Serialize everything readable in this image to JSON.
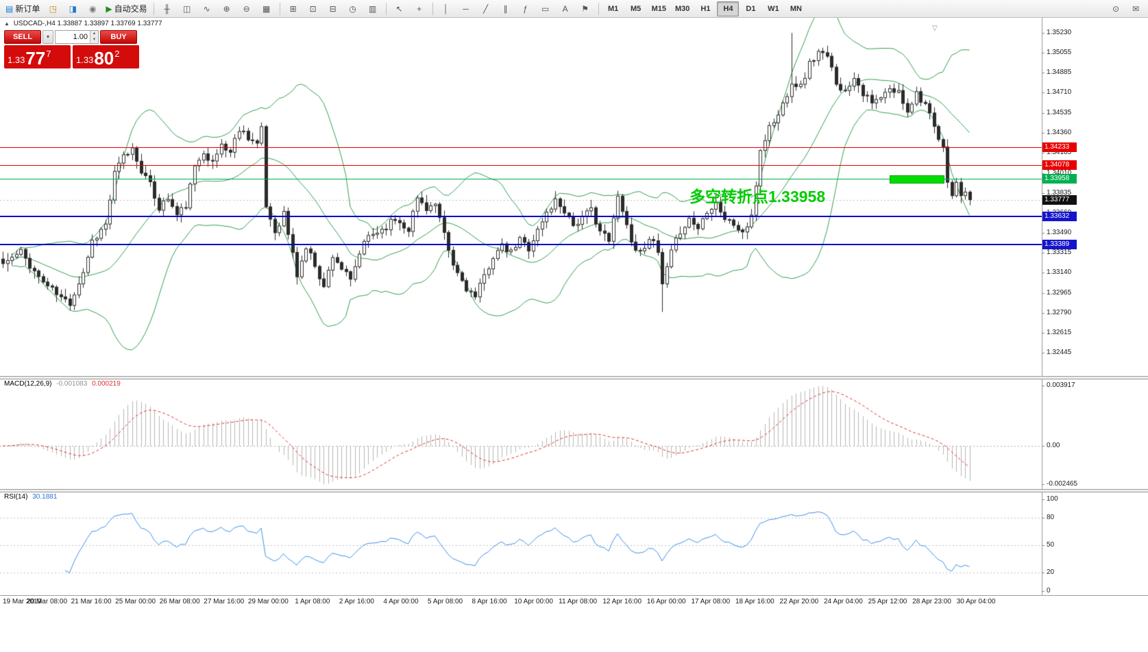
{
  "toolbar": {
    "groups": [
      [
        {
          "name": "new-order-button",
          "glyph": "▤",
          "glyph_color": "#1976d2",
          "label": "新订单"
        },
        {
          "name": "market-watch-button",
          "glyph": "◳",
          "glyph_color": "#c98a00"
        },
        {
          "name": "navigator-button",
          "glyph": "◨",
          "glyph_color": "#1976d2"
        },
        {
          "name": "terminal-button",
          "glyph": "◉",
          "glyph_color": "#777777"
        },
        {
          "name": "autotrading-button",
          "glyph": "▶",
          "glyph_color": "#1e8e1e",
          "label": "自动交易"
        }
      ],
      [
        {
          "name": "bar-chart-button",
          "glyph": "╫"
        },
        {
          "name": "candlestick-chart-button",
          "glyph": "◫"
        },
        {
          "name": "line-chart-button",
          "glyph": "∿"
        },
        {
          "name": "zoom-in-button",
          "glyph": "⊕"
        },
        {
          "name": "zoom-out-button",
          "glyph": "⊖"
        },
        {
          "name": "grid-button",
          "glyph": "▦"
        }
      ],
      [
        {
          "name": "tile-windows-button",
          "glyph": "⊞"
        },
        {
          "name": "new-chart-button",
          "glyph": "⊡"
        },
        {
          "name": "profiles-button",
          "glyph": "⊟"
        },
        {
          "name": "clock-button",
          "glyph": "◷"
        },
        {
          "name": "indicators-button",
          "glyph": "▥"
        }
      ],
      [
        {
          "name": "cursor-button",
          "glyph": "↖"
        },
        {
          "name": "crosshair-button",
          "glyph": "+"
        }
      ],
      [
        {
          "name": "vertical-line-button",
          "glyph": "│"
        },
        {
          "name": "horizontal-line-button",
          "glyph": "─"
        },
        {
          "name": "trendline-button",
          "glyph": "╱"
        },
        {
          "name": "equidistant-channel-button",
          "glyph": "∥"
        },
        {
          "name": "fibonacci-button",
          "glyph": "ƒ"
        },
        {
          "name": "shapes-button",
          "glyph": "▭"
        },
        {
          "name": "text-button",
          "glyph": "A"
        },
        {
          "name": "arrows-button",
          "glyph": "⚑"
        }
      ]
    ],
    "timeframes": {
      "items": [
        "M1",
        "M5",
        "M15",
        "M30",
        "H1",
        "H4",
        "D1",
        "W1",
        "MN"
      ],
      "active": "H4"
    },
    "right_buttons": [
      {
        "name": "search-button",
        "glyph": "⊙"
      },
      {
        "name": "chat-button",
        "glyph": "✉"
      }
    ]
  },
  "title": {
    "marker": "▲",
    "symbol_period": "USDCAD-,H4",
    "ohlc": "1.33887 1.33897 1.33769 1.33777"
  },
  "one_click": {
    "sell_label": "SELL",
    "buy_label": "BUY",
    "volume": "1.00",
    "sell_price_main": "1.33",
    "sell_price_big": "77",
    "sell_price_sup": "7",
    "buy_price_main": "1.33",
    "buy_price_big": "80",
    "buy_price_sup": "2",
    "icons": {
      "dropdown": "▼",
      "spin_up": "▲",
      "spin_down": "▼"
    }
  },
  "annotation": {
    "text": "多空转折点1.33958",
    "color": "#00cc00"
  },
  "levels": [
    {
      "name": "resistance-upper",
      "price": "1.34233",
      "color": "#e80000",
      "badge": "#e80000",
      "thickness": 1
    },
    {
      "name": "resistance-lower",
      "price": "1.34078",
      "color": "#e80000",
      "badge": "#e80000",
      "thickness": 1
    },
    {
      "name": "pivot",
      "price": "1.33958",
      "color": "#00b050",
      "badge": "#00b050",
      "thickness": 1
    },
    {
      "name": "support-upper",
      "price": "1.33632",
      "color": "#0000cd",
      "badge": "#1414cc",
      "thickness": 2
    },
    {
      "name": "support-lower",
      "price": "1.33389",
      "color": "#0000cd",
      "badge": "#1414cc",
      "thickness": 2
    }
  ],
  "current_price_badge": "1.33777",
  "icons": {
    "shift_marker": "▽"
  },
  "chart_data": {
    "type": "candlestick",
    "symbol": "USDCAD-",
    "period": "H4",
    "ohlc_display": {
      "open": "1.33887",
      "high": "1.33897",
      "low": "1.33769",
      "close": "1.33777"
    },
    "current_price": 1.33777,
    "bollinger": {
      "period": 20,
      "deviation": 2,
      "color": "#2f9e4f"
    },
    "candles": {
      "count": 218,
      "seed": 11,
      "anchors": [
        [
          0,
          1.3322
        ],
        [
          4,
          1.3332
        ],
        [
          8,
          1.331
        ],
        [
          13,
          1.3292
        ],
        [
          15,
          1.3288
        ],
        [
          18,
          1.3315
        ],
        [
          20,
          1.3342
        ],
        [
          23,
          1.3356
        ],
        [
          25,
          1.34
        ],
        [
          27,
          1.3415
        ],
        [
          29,
          1.3422
        ],
        [
          31,
          1.3404
        ],
        [
          33,
          1.339
        ],
        [
          35,
          1.3371
        ],
        [
          37,
          1.3379
        ],
        [
          39,
          1.3364
        ],
        [
          41,
          1.3373
        ],
        [
          43,
          1.3405
        ],
        [
          45,
          1.3421
        ],
        [
          47,
          1.3409
        ],
        [
          49,
          1.3426
        ],
        [
          51,
          1.3419
        ],
        [
          53,
          1.344
        ],
        [
          55,
          1.3433
        ],
        [
          57,
          1.3426
        ],
        [
          58,
          1.3438
        ],
        [
          59,
          1.3372
        ],
        [
          61,
          1.335
        ],
        [
          63,
          1.3366
        ],
        [
          65,
          1.333
        ],
        [
          66,
          1.3312
        ],
        [
          68,
          1.3336
        ],
        [
          70,
          1.3322
        ],
        [
          72,
          1.3301
        ],
        [
          74,
          1.333
        ],
        [
          76,
          1.3318
        ],
        [
          78,
          1.3306
        ],
        [
          80,
          1.3331
        ],
        [
          82,
          1.3346
        ],
        [
          85,
          1.3352
        ],
        [
          88,
          1.3361
        ],
        [
          91,
          1.3353
        ],
        [
          93,
          1.3379
        ],
        [
          95,
          1.3371
        ],
        [
          97,
          1.3373
        ],
        [
          99,
          1.3346
        ],
        [
          101,
          1.332
        ],
        [
          104,
          1.3301
        ],
        [
          106,
          1.3292
        ],
        [
          108,
          1.3311
        ],
        [
          110,
          1.3329
        ],
        [
          112,
          1.3336
        ],
        [
          114,
          1.3331
        ],
        [
          116,
          1.3343
        ],
        [
          118,
          1.3336
        ],
        [
          120,
          1.3351
        ],
        [
          122,
          1.3366
        ],
        [
          124,
          1.3377
        ],
        [
          126,
          1.3369
        ],
        [
          128,
          1.3356
        ],
        [
          130,
          1.3361
        ],
        [
          132,
          1.3369
        ],
        [
          134,
          1.3351
        ],
        [
          136,
          1.3341
        ],
        [
          138,
          1.338
        ],
        [
          139,
          1.3371
        ],
        [
          141,
          1.3341
        ],
        [
          143,
          1.3331
        ],
        [
          145,
          1.3346
        ],
        [
          147,
          1.3331
        ],
        [
          148,
          1.3303
        ],
        [
          150,
          1.3331
        ],
        [
          152,
          1.3351
        ],
        [
          154,
          1.3361
        ],
        [
          156,
          1.3353
        ],
        [
          158,
          1.3369
        ],
        [
          160,
          1.3376
        ],
        [
          162,
          1.3361
        ],
        [
          164,
          1.3356
        ],
        [
          166,
          1.3349
        ],
        [
          168,
          1.3361
        ],
        [
          170,
          1.3421
        ],
        [
          172,
          1.3441
        ],
        [
          174,
          1.3451
        ],
        [
          176,
          1.3471
        ],
        [
          177,
          1.3481
        ],
        [
          179,
          1.3476
        ],
        [
          181,
          1.3496
        ],
        [
          183,
          1.3506
        ],
        [
          185,
          1.3501
        ],
        [
          187,
          1.3481
        ],
        [
          189,
          1.3471
        ],
        [
          191,
          1.3486
        ],
        [
          193,
          1.3471
        ],
        [
          195,
          1.3461
        ],
        [
          197,
          1.3466
        ],
        [
          199,
          1.3473
        ],
        [
          201,
          1.3471
        ],
        [
          203,
          1.3456
        ],
        [
          205,
          1.3471
        ],
        [
          207,
          1.3461
        ],
        [
          209,
          1.3439
        ],
        [
          211,
          1.3421
        ],
        [
          212,
          1.3396
        ],
        [
          213,
          1.3381
        ],
        [
          214,
          1.3391
        ],
        [
          215,
          1.3383
        ],
        [
          216,
          1.3381
        ],
        [
          217,
          1.33777
        ]
      ],
      "overrides": {
        "spike_index": 177,
        "spike_high": 1.3523,
        "dip_index": 148,
        "dip_low": 1.328
      }
    },
    "price_axis_ticks": [
      "1.35230",
      "1.35055",
      "1.34885",
      "1.34710",
      "1.34535",
      "1.34360",
      "1.34185",
      "1.34010",
      "1.33835",
      "1.33660",
      "1.33490",
      "1.33315",
      "1.33140",
      "1.32965",
      "1.32790",
      "1.32615",
      "1.32445"
    ],
    "time_axis": [
      "19 Mar 2019",
      "20 Mar 08:00",
      "21 Mar 16:00",
      "25 Mar 00:00",
      "26 Mar 08:00",
      "27 Mar 16:00",
      "29 Mar 00:00",
      "1 Apr 08:00",
      "2 Apr 16:00",
      "4 Apr 00:00",
      "5 Apr 08:00",
      "8 Apr 16:00",
      "10 Apr 00:00",
      "11 Apr 08:00",
      "12 Apr 16:00",
      "16 Apr 00:00",
      "17 Apr 08:00",
      "18 Apr 16:00",
      "22 Apr 20:00",
      "24 Apr 04:00",
      "25 Apr 12:00",
      "28 Apr 23:00",
      "30 Apr 04:00"
    ],
    "macd": {
      "label": "MACD(12,26,9)",
      "value_main": "-0.001083",
      "value_signal": "0.000219",
      "axis": [
        "0.003917",
        "0.00",
        "-0.002465"
      ],
      "histogram_color": "#b4b4b4",
      "signal_color": "#e03131"
    },
    "rsi": {
      "label": "RSI(14)",
      "value": "30.1881",
      "axis": [
        "100",
        "80",
        "50",
        "20",
        "0"
      ],
      "levels": [
        80,
        50,
        20
      ],
      "line_color": "#3b8fe8"
    }
  }
}
